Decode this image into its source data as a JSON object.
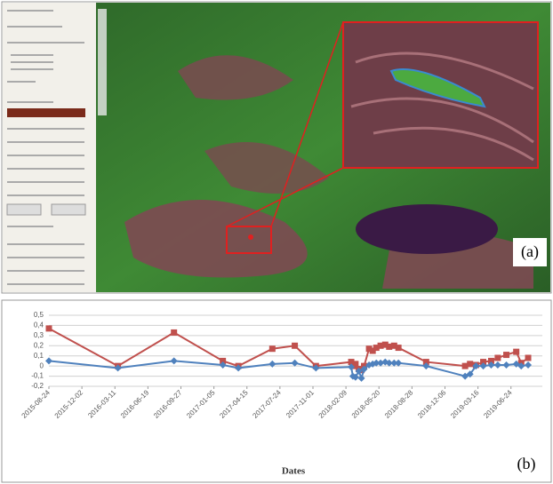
{
  "panel_a": {
    "label": "(a)"
  },
  "chart_data": {
    "type": "line",
    "x_label": "Dates",
    "annotation": "(b)",
    "x": [
      "2015-08-24",
      "2016-03-20",
      "2016-09-06",
      "2017-02-01",
      "2017-03-20",
      "2017-07-01",
      "2017-09-07",
      "2017-11-10",
      "2018-02-25",
      "2018-03-02",
      "2018-03-10",
      "2018-03-20",
      "2018-03-28",
      "2018-04-05",
      "2018-04-20",
      "2018-05-01",
      "2018-05-12",
      "2018-05-25",
      "2018-06-08",
      "2018-06-20",
      "2018-07-05",
      "2018-07-18",
      "2018-10-10",
      "2019-02-05",
      "2019-02-20",
      "2019-03-10",
      "2019-04-01",
      "2019-04-25",
      "2019-05-15",
      "2019-06-10",
      "2019-07-10",
      "2019-07-25",
      "2019-08-15"
    ],
    "series": [
      {
        "color": "#c0504d",
        "marker": "square",
        "values": [
          0.37,
          0.0,
          0.33,
          0.05,
          0.0,
          0.17,
          0.2,
          0.0,
          0.04,
          0.0,
          0.02,
          -0.03,
          -0.04,
          0.0,
          0.17,
          0.15,
          0.18,
          0.2,
          0.21,
          0.19,
          0.2,
          0.18,
          0.04,
          0.0,
          0.02,
          0.01,
          0.04,
          0.05,
          0.08,
          0.11,
          0.14,
          0.03,
          0.08
        ]
      },
      {
        "color": "#4f81bd",
        "marker": "diamond",
        "values": [
          0.05,
          -0.02,
          0.05,
          0.01,
          -0.02,
          0.02,
          0.03,
          -0.02,
          -0.01,
          -0.1,
          -0.11,
          -0.05,
          -0.12,
          -0.03,
          0.01,
          0.02,
          0.03,
          0.03,
          0.04,
          0.03,
          0.03,
          0.03,
          0.0,
          -0.1,
          -0.08,
          0.0,
          0.0,
          0.01,
          0.01,
          0.01,
          0.02,
          0.0,
          0.01
        ]
      }
    ],
    "xlim": [
      "2015-08-24",
      "2019-09-27"
    ],
    "xticks": [
      "2015-08-24",
      "2015-12-02",
      "2016-03-11",
      "2016-06-19",
      "2016-09-27",
      "2017-01-05",
      "2017-04-15",
      "2017-07-24",
      "2017-11-01",
      "2018-02-09",
      "2018-05-20",
      "2018-08-28",
      "2018-12-06",
      "2019-03-16",
      "2019-06-24"
    ],
    "ylim": [
      -0.2,
      0.5
    ],
    "yticks": [
      {
        "value": -0.2,
        "label": "-0,2"
      },
      {
        "value": -0.1,
        "label": "-0,1"
      },
      0,
      {
        "value": 0.1,
        "label": "0,1"
      },
      {
        "value": 0.2,
        "label": "0,2"
      },
      {
        "value": 0.3,
        "label": "0,3"
      },
      {
        "value": 0.4,
        "label": "0,4"
      },
      {
        "value": 0.5,
        "label": "0,5"
      }
    ],
    "grid": true
  }
}
